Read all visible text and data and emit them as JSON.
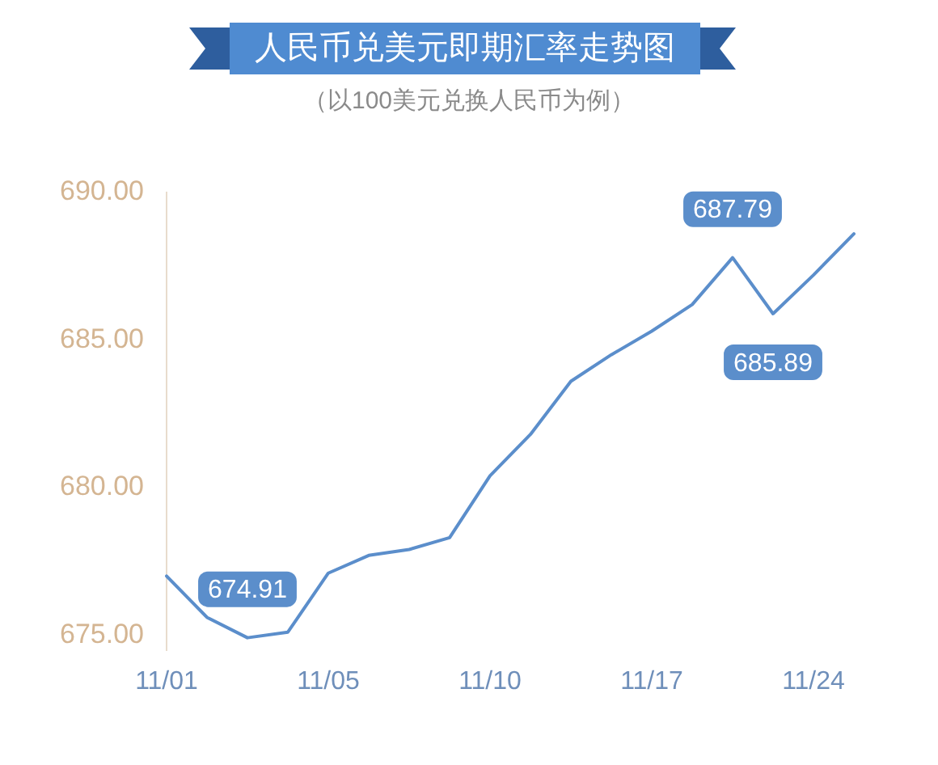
{
  "chart_data": {
    "type": "line",
    "title": "人民币兑美元即期汇率走势图",
    "subtitle": "（以100美元兑换人民币为例）",
    "categories": [
      "11/01",
      null,
      null,
      null,
      "11/05",
      null,
      null,
      null,
      "11/10",
      null,
      null,
      null,
      "11/17",
      null,
      null,
      null,
      "11/24",
      null
    ],
    "values": [
      677.0,
      675.6,
      674.91,
      675.1,
      677.1,
      677.7,
      677.9,
      678.3,
      680.4,
      681.8,
      683.6,
      684.5,
      685.3,
      686.2,
      687.79,
      685.89,
      687.2,
      688.6
    ],
    "value_labels": [
      null,
      null,
      "674.91",
      null,
      null,
      null,
      null,
      null,
      null,
      null,
      null,
      null,
      null,
      null,
      "687.79",
      "685.89",
      null,
      null
    ],
    "color": "#5b8ecb",
    "ylim": [
      674.5,
      690
    ],
    "yticks": [
      {
        "value": 675,
        "label": "675.00"
      },
      {
        "value": 680,
        "label": "680.00"
      },
      {
        "value": 685,
        "label": "685.00"
      },
      {
        "value": 690,
        "label": "690.00"
      }
    ],
    "marker": "none",
    "line_style": "solid"
  }
}
